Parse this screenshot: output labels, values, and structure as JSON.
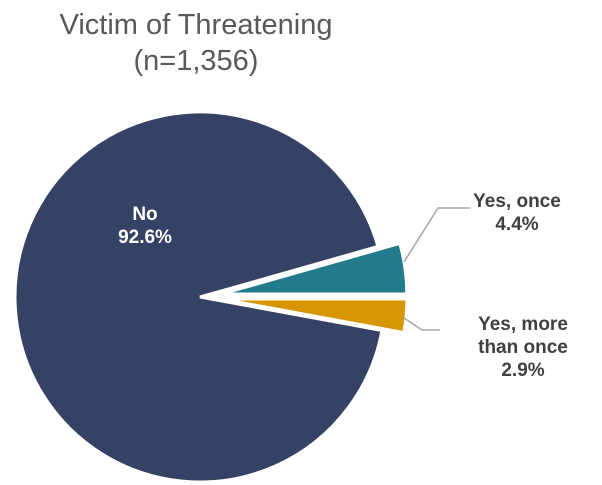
{
  "chart_data": {
    "type": "pie",
    "title": "Victim of Threatening",
    "subtitle": "(n=1,356)",
    "slices": [
      {
        "name": "No",
        "value": 92.6,
        "label": "92.6%",
        "color": "#364166",
        "label_lines": [
          "No"
        ]
      },
      {
        "name": "Yes, once",
        "value": 4.4,
        "label": "4.4%",
        "color": "#217b8a",
        "label_lines": [
          "Yes, once"
        ]
      },
      {
        "name": "Yes, more than once",
        "value": 2.9,
        "label": "2.9%",
        "color": "#d69703",
        "label_lines": [
          "Yes, more",
          "than once"
        ]
      }
    ],
    "legend": "none",
    "leader_line_color": "#a6a6a6"
  }
}
